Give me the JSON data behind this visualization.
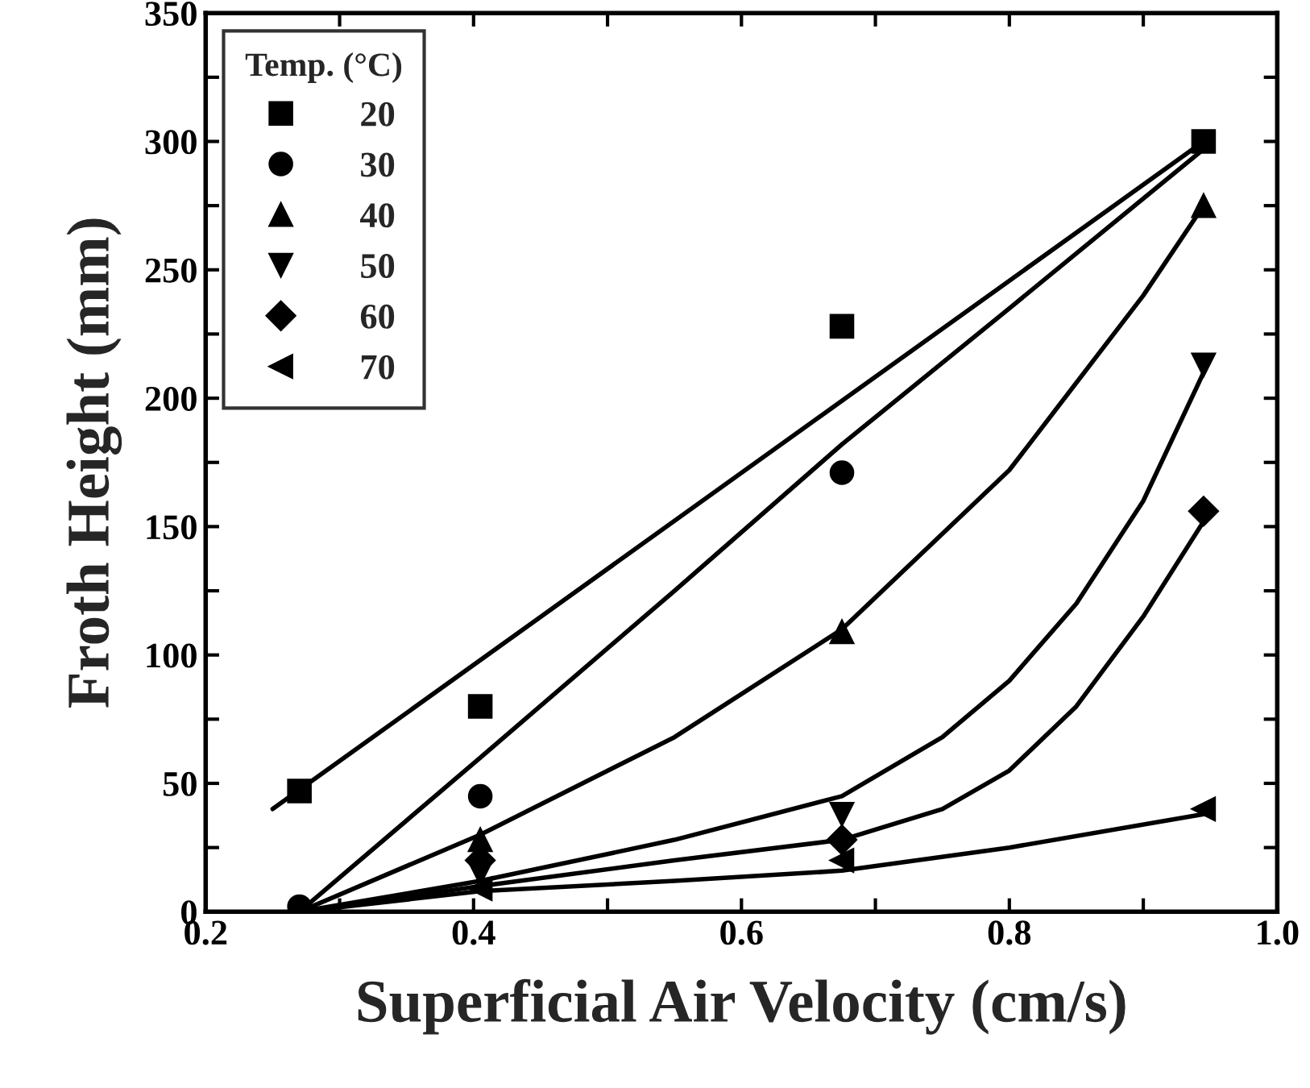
{
  "chart_data": {
    "type": "scatter",
    "xlabel": "Superficial Air Velocity (cm/s)",
    "ylabel": "Froth Height (mm)",
    "legend_title": "Temp. (°C)",
    "legend": "top left",
    "grid": false,
    "xlim": [
      0.2,
      1.0
    ],
    "ylim": [
      0,
      350
    ],
    "xticks": [
      0.2,
      {
        "value": 0.3,
        "label": null
      },
      0.4,
      {
        "value": 0.5,
        "label": null
      },
      0.6,
      {
        "value": 0.7,
        "label": null
      },
      0.8,
      {
        "value": 0.9,
        "label": null
      },
      {
        "value": 1.0,
        "label": "1.0"
      }
    ],
    "yticks": [
      0,
      {
        "value": 25,
        "label": null
      },
      50,
      {
        "value": 75,
        "label": null
      },
      100,
      {
        "value": 125,
        "label": null
      },
      150,
      {
        "value": 175,
        "label": null
      },
      200,
      {
        "value": 225,
        "label": null
      },
      250,
      {
        "value": 275,
        "label": null
      },
      300,
      {
        "value": 325,
        "label": null
      },
      350
    ],
    "series": [
      {
        "name": "20",
        "color": "#000000",
        "marker": "square",
        "x": [
          0.27,
          0.405,
          0.675,
          0.945
        ],
        "values": [
          47,
          80,
          228,
          300
        ]
      },
      {
        "name": "30",
        "color": "#000000",
        "marker": "circle",
        "x": [
          0.27,
          0.405,
          0.675
        ],
        "values": [
          2,
          45,
          171
        ]
      },
      {
        "name": "40",
        "color": "#000000",
        "marker": "triangle",
        "x": [
          0.405,
          0.675,
          0.945
        ],
        "values": [
          28,
          109,
          275
        ]
      },
      {
        "name": "50",
        "color": "#000000",
        "marker": "triangle_down",
        "x": [
          0.405,
          0.675,
          0.945
        ],
        "values": [
          15,
          38,
          213
        ]
      },
      {
        "name": "60",
        "color": "#000000",
        "marker": "diamond",
        "x": [
          0.405,
          0.675,
          0.945
        ],
        "values": [
          20,
          28,
          156
        ]
      },
      {
        "name": "70",
        "color": "#000000",
        "marker": "triangle_left",
        "x": [
          0.405,
          0.675,
          0.945
        ],
        "values": [
          9,
          20,
          40
        ]
      },
      {
        "type": "line",
        "color": "#000000",
        "marker": "none",
        "x": [
          0.25,
          0.945
        ],
        "values": [
          40,
          300
        ]
      },
      {
        "type": "line",
        "color": "#000000",
        "marker": "none",
        "x": [
          0.27,
          0.405,
          0.55,
          0.675,
          0.8,
          0.945
        ],
        "values": [
          0,
          60,
          125,
          182,
          235,
          297
        ]
      },
      {
        "type": "line",
        "color": "#000000",
        "marker": "none",
        "x": [
          0.27,
          0.405,
          0.55,
          0.675,
          0.8,
          0.9,
          0.945
        ],
        "values": [
          0,
          30,
          68,
          110,
          172,
          240,
          275
        ]
      },
      {
        "type": "line",
        "color": "#000000",
        "marker": "none",
        "x": [
          0.27,
          0.405,
          0.55,
          0.675,
          0.75,
          0.8,
          0.85,
          0.9,
          0.945
        ],
        "values": [
          0,
          12,
          28,
          45,
          68,
          90,
          120,
          160,
          210
        ]
      },
      {
        "type": "line",
        "color": "#000000",
        "marker": "none",
        "x": [
          0.27,
          0.405,
          0.55,
          0.675,
          0.75,
          0.8,
          0.85,
          0.9,
          0.945
        ],
        "values": [
          0,
          10,
          20,
          28,
          40,
          55,
          80,
          115,
          152
        ]
      },
      {
        "type": "line",
        "color": "#000000",
        "marker": "none",
        "x": [
          0.27,
          0.405,
          0.55,
          0.675,
          0.8,
          0.945
        ],
        "values": [
          0,
          8,
          12,
          16,
          25,
          38
        ]
      }
    ]
  }
}
